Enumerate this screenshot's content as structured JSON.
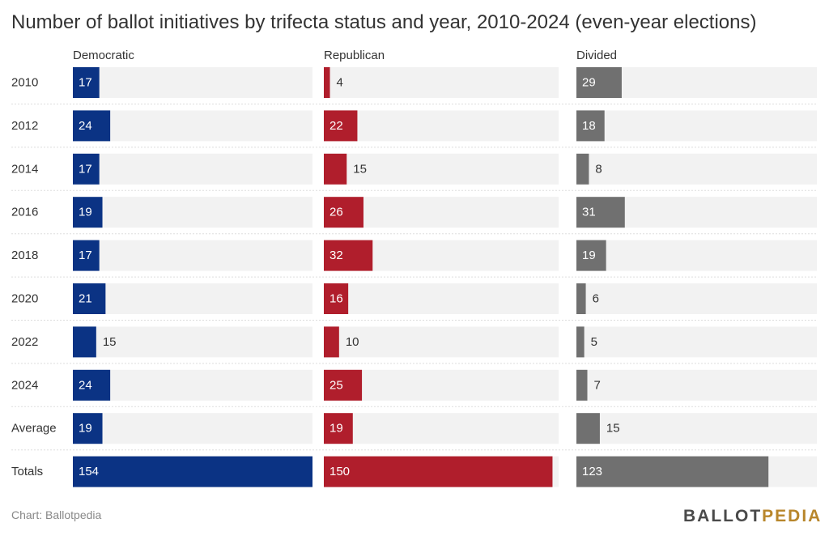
{
  "title": "Number of ballot initiatives by trifecta status and year, 2010-2024 (even-year elections)",
  "source": "Chart: Ballotpedia",
  "logo": {
    "part1": "BALLOT",
    "part2": "PEDIA"
  },
  "colors": {
    "Democratic": "#0b3384",
    "Republican": "#b01e2c",
    "Divided": "#707070",
    "track": "#f2f2f2",
    "inside_label": "#ffffff",
    "outside_label": "#333333"
  },
  "chart_data": {
    "type": "bar",
    "orientation": "horizontal",
    "layout": "small-multiples",
    "categories": [
      "2010",
      "2012",
      "2014",
      "2016",
      "2018",
      "2020",
      "2022",
      "2024",
      "Average",
      "Totals"
    ],
    "series": [
      {
        "name": "Democratic",
        "values": [
          17,
          24,
          17,
          19,
          17,
          21,
          15,
          24,
          19,
          154
        ]
      },
      {
        "name": "Republican",
        "values": [
          4,
          22,
          15,
          26,
          32,
          16,
          10,
          25,
          19,
          150
        ]
      },
      {
        "name": "Divided",
        "values": [
          29,
          18,
          8,
          31,
          19,
          6,
          5,
          7,
          15,
          123
        ]
      }
    ],
    "xlim": [
      0,
      154
    ],
    "grid": false
  }
}
